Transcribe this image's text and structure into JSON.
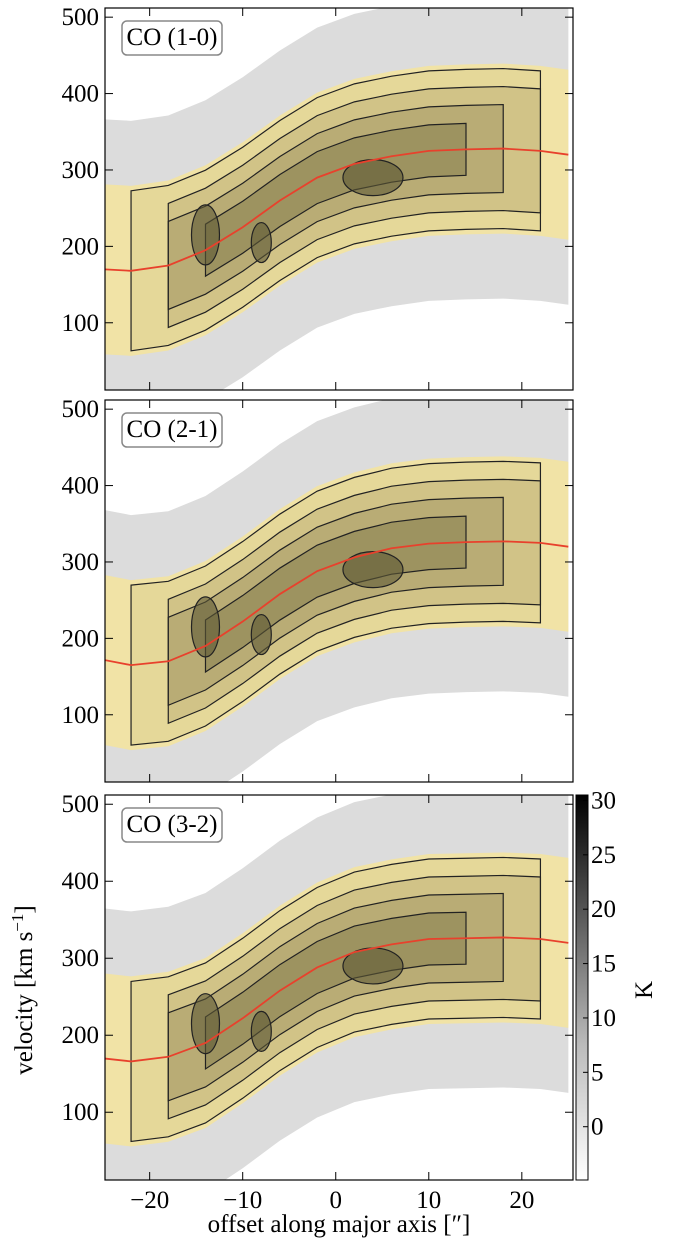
{
  "chart_data": [
    {
      "type": "line",
      "title": "CO (1-0)",
      "x": [
        -25,
        -22,
        -18,
        -14,
        -10,
        -6,
        -2,
        2,
        6,
        10,
        14,
        18,
        22,
        25
      ],
      "values": [
        170,
        168,
        175,
        195,
        225,
        260,
        290,
        308,
        318,
        325,
        327,
        328,
        325,
        320
      ],
      "color": "#e8412c",
      "xlim": [
        -24.8,
        25.5
      ],
      "ylim": [
        12,
        512
      ],
      "xticks": [
        -20,
        -10,
        0,
        10,
        20
      ],
      "yticks": [
        100,
        200,
        300,
        400,
        500
      ]
    },
    {
      "type": "line",
      "title": "CO (2-1)",
      "x": [
        -25,
        -22,
        -18,
        -14,
        -10,
        -6,
        -2,
        2,
        6,
        10,
        14,
        18,
        22,
        25
      ],
      "values": [
        172,
        165,
        170,
        190,
        222,
        258,
        288,
        306,
        318,
        324,
        326,
        327,
        325,
        320
      ],
      "color": "#e8412c",
      "xlim": [
        -24.8,
        25.5
      ],
      "ylim": [
        12,
        512
      ],
      "xticks": [
        -20,
        -10,
        0,
        10,
        20
      ],
      "yticks": [
        100,
        200,
        300,
        400,
        500
      ]
    },
    {
      "type": "line",
      "title": "CO (3-2)",
      "x": [
        -25,
        -22,
        -18,
        -14,
        -10,
        -6,
        -2,
        2,
        6,
        10,
        14,
        18,
        22,
        25
      ],
      "values": [
        170,
        166,
        172,
        190,
        222,
        258,
        288,
        308,
        318,
        325,
        326,
        327,
        325,
        320
      ],
      "color": "#e8412c",
      "xlim": [
        -24.8,
        25.5
      ],
      "ylim": [
        12,
        512
      ],
      "xticks": [
        {
          "value": -20,
          "label": "−20"
        },
        {
          "value": -10,
          "label": "−10"
        },
        {
          "value": 0,
          "label": "0"
        },
        {
          "value": 10,
          "label": "10"
        },
        {
          "value": 20,
          "label": "20"
        }
      ],
      "yticks": [
        100,
        200,
        300,
        400,
        500
      ]
    }
  ],
  "y_label_parts": [
    "velocity [km s",
    "−1",
    "]"
  ],
  "x_label": "offset along major axis [″]",
  "colorbar": {
    "label": "K",
    "ylim": [
      -4.9,
      30.5
    ],
    "yticks": [
      0,
      5,
      10,
      15,
      20,
      25,
      30
    ]
  }
}
